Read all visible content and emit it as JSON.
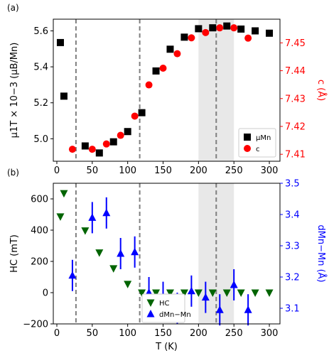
{
  "chart_data": [
    {
      "panel_label": "(a)",
      "type": "scatter",
      "xlim": [
        -5,
        315
      ],
      "xticks": [
        0,
        50,
        100,
        150,
        200,
        250,
        300
      ],
      "ylabel_left": "μ1T × 10−3 (μB/Mn)",
      "ylim_left": [
        4.875,
        5.665
      ],
      "yticks_left": [
        5.0,
        5.2,
        5.4,
        5.6
      ],
      "ylabel_right": "c (Å)",
      "ylim_right": [
        7.4075,
        7.4585
      ],
      "yticks_right": [
        7.41,
        7.42,
        7.43,
        7.44,
        7.45
      ],
      "right_color": "#ff0000",
      "vlines_x": [
        27,
        117,
        225
      ],
      "shaded_region": [
        200,
        250
      ],
      "legend_position": "lower-right",
      "series": [
        {
          "name": "μMn",
          "axis": "left",
          "marker": "square",
          "color": "#000000",
          "x": [
            5,
            10,
            40,
            60,
            80,
            100,
            120,
            140,
            160,
            180,
            200,
            220,
            240,
            260,
            280,
            300
          ],
          "y": [
            5.535,
            5.237,
            4.96,
            4.921,
            4.983,
            5.04,
            5.145,
            5.377,
            5.498,
            5.565,
            5.612,
            5.617,
            5.627,
            5.61,
            5.6,
            5.587
          ]
        },
        {
          "name": "c",
          "axis": "right",
          "marker": "circle",
          "color": "#ff0000",
          "x": [
            22,
            50,
            70,
            90,
            110,
            130,
            150,
            170,
            190,
            210,
            230,
            250,
            270
          ],
          "y": [
            7.4118,
            7.4118,
            7.4137,
            7.4168,
            7.4237,
            7.4349,
            7.4409,
            7.4461,
            7.4518,
            7.4537,
            7.4554,
            7.4554,
            7.4517
          ]
        }
      ]
    },
    {
      "panel_label": "(b)",
      "type": "scatter",
      "xlabel": "T (K)",
      "xlim": [
        -5,
        315
      ],
      "xticks": [
        0,
        50,
        100,
        150,
        200,
        250,
        300
      ],
      "ylabel_left": "HC (mT)",
      "ylim_left": [
        -200,
        700
      ],
      "yticks_left": [
        -200,
        0,
        200,
        400,
        600
      ],
      "ylabel_right": "dMn−Mn (Å)",
      "ylim_right": [
        3.05,
        3.5
      ],
      "yticks_right": [
        3.1,
        3.2,
        3.3,
        3.4,
        3.5
      ],
      "right_color": "#0000ff",
      "vlines_x": [
        27,
        117,
        225
      ],
      "shaded_region": [
        200,
        250
      ],
      "legend_position": "lower-center",
      "series": [
        {
          "name": "HC",
          "axis": "left",
          "marker": "triangle-down",
          "color": "#006400",
          "x": [
            5,
            10,
            40,
            60,
            80,
            100,
            120,
            140,
            160,
            180,
            200,
            220,
            240,
            260,
            280,
            300
          ],
          "y": [
            487,
            636,
            397,
            256,
            155,
            55,
            0,
            0,
            0,
            0,
            0,
            0,
            0,
            0,
            0,
            0
          ]
        },
        {
          "name": "dMn−Mn",
          "axis": "right",
          "marker": "triangle-up",
          "color": "#0000ff",
          "x": [
            22,
            50,
            70,
            90,
            110,
            130,
            150,
            170,
            190,
            210,
            230,
            250,
            270
          ],
          "y": [
            3.205,
            3.39,
            3.405,
            3.275,
            3.28,
            3.15,
            3.135,
            3.1,
            3.155,
            3.135,
            3.095,
            3.175,
            3.095
          ],
          "yerr": [
            0.05,
            0.05,
            0.05,
            0.05,
            0.05,
            0.05,
            0.05,
            0.05,
            0.05,
            0.05,
            0.05,
            0.05,
            0.05
          ]
        }
      ]
    }
  ]
}
